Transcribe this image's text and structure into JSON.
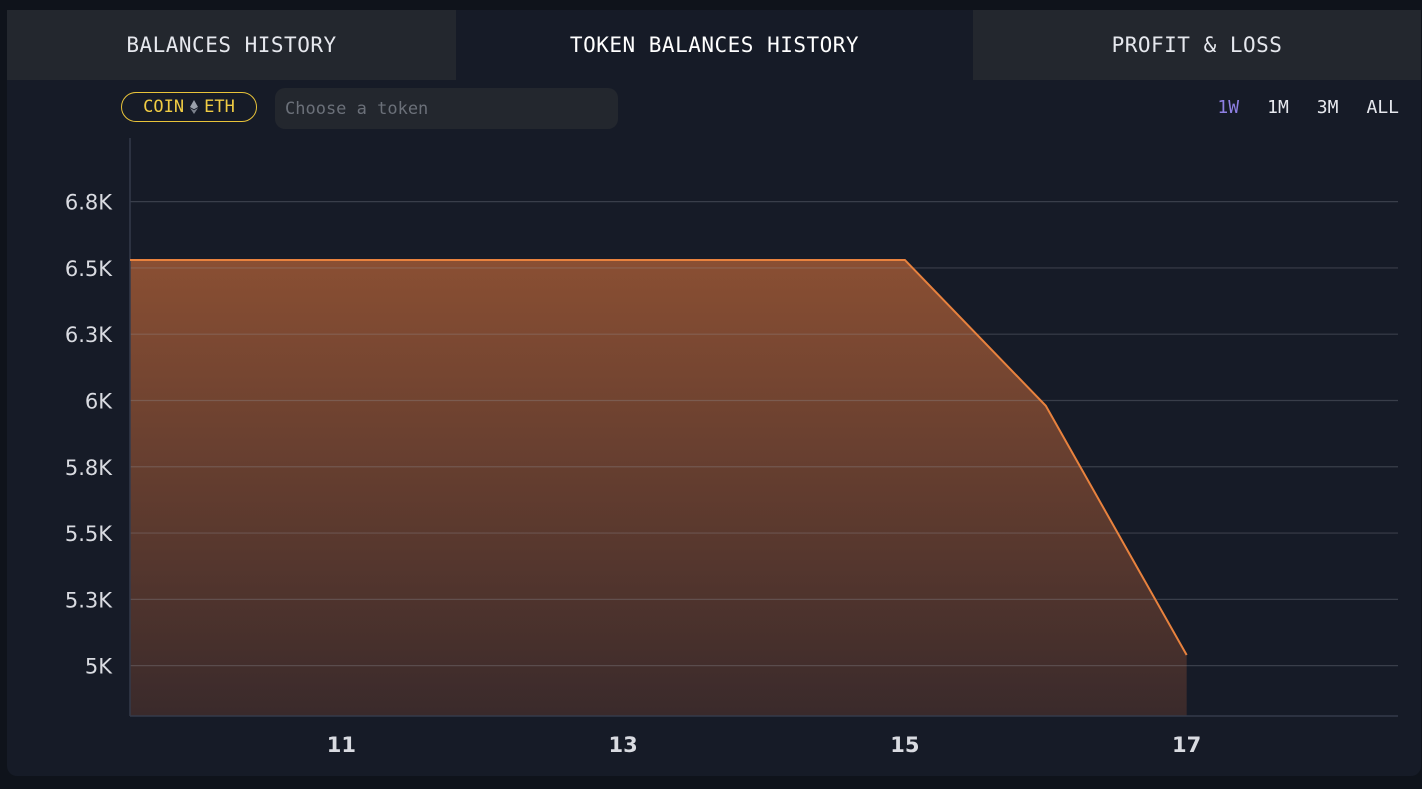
{
  "tabs": [
    {
      "label": "BALANCES HISTORY",
      "active": false
    },
    {
      "label": "TOKEN BALANCES HISTORY",
      "active": true
    },
    {
      "label": "PROFIT & LOSS",
      "active": false
    }
  ],
  "filter": {
    "coin_label": "COIN",
    "eth_icon": "ethereum-icon",
    "eth_label": "ETH",
    "token_placeholder": "Choose a token"
  },
  "ranges": [
    {
      "label": "1W",
      "selected": true
    },
    {
      "label": "1M",
      "selected": false
    },
    {
      "label": "3M",
      "selected": false
    },
    {
      "label": "ALL",
      "selected": false
    }
  ],
  "colors": {
    "accent": "#8e7fe3",
    "badge": "#f0cc44",
    "line": "#e8823e",
    "fill_top": "#8a4f33",
    "fill_bottom": "#3a2a2b"
  },
  "chart_data": {
    "type": "area",
    "x": [
      9.5,
      15,
      16,
      17
    ],
    "values": [
      6530,
      6530,
      5980,
      5040
    ],
    "xticks": [
      11,
      13,
      15,
      17
    ],
    "yticks": [
      {
        "value": 5000,
        "label": "5K"
      },
      {
        "value": 5250,
        "label": "5.3K"
      },
      {
        "value": 5500,
        "label": "5.5K"
      },
      {
        "value": 5750,
        "label": "5.8K"
      },
      {
        "value": 6000,
        "label": "6K"
      },
      {
        "value": 6250,
        "label": "6.3K"
      },
      {
        "value": 6500,
        "label": "6.5K"
      },
      {
        "value": 6750,
        "label": "6.8K"
      }
    ],
    "xlim": [
      9.5,
      18.5
    ],
    "ylim": [
      4810,
      6990
    ],
    "grid": true
  }
}
